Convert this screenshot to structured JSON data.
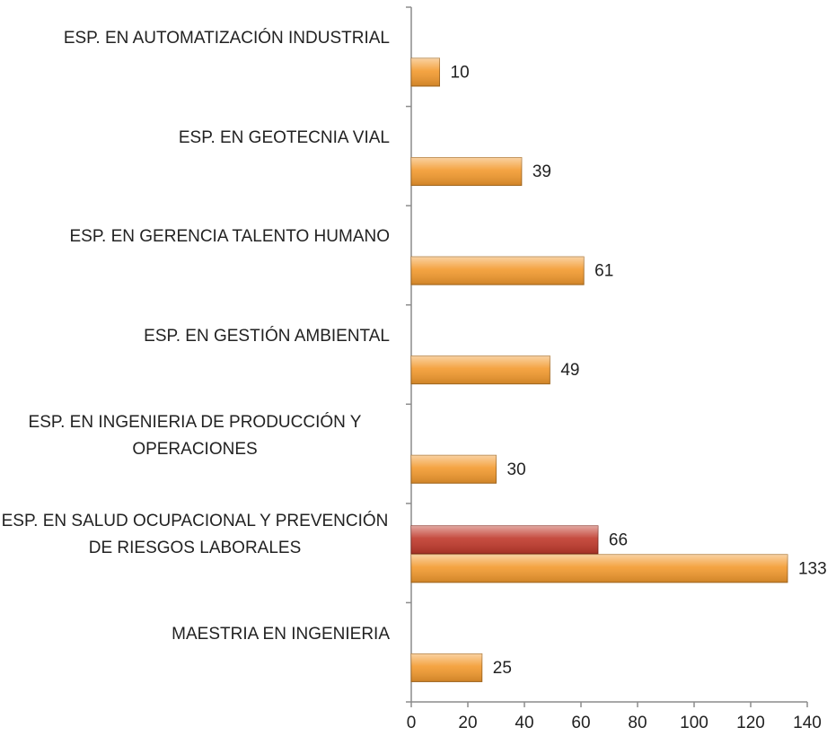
{
  "chart_data": {
    "type": "bar",
    "orientation": "horizontal",
    "categories": [
      "ESP. EN AUTOMATIZACIÓN INDUSTRIAL",
      "ESP. EN GEOTECNIA VIAL",
      "ESP. EN GERENCIA TALENTO HUMANO",
      "ESP. EN GESTIÓN AMBIENTAL",
      "ESP. EN INGENIERIA DE PRODUCCIÓN Y OPERACIONES",
      "ESP. EN SALUD OCUPACIONAL Y PREVENCIÓN DE RIESGOS LABORALES",
      "MAESTRIA EN INGENIERIA"
    ],
    "series": [
      {
        "color": "#c0392b",
        "values": [
          null,
          null,
          null,
          null,
          null,
          66,
          null
        ]
      },
      {
        "color": "#f39a2e",
        "values": [
          10,
          39,
          61,
          49,
          30,
          133,
          25
        ]
      }
    ],
    "xlim": [
      0,
      140
    ],
    "xticks": [
      0,
      20,
      40,
      60,
      80,
      100,
      120,
      140
    ]
  }
}
